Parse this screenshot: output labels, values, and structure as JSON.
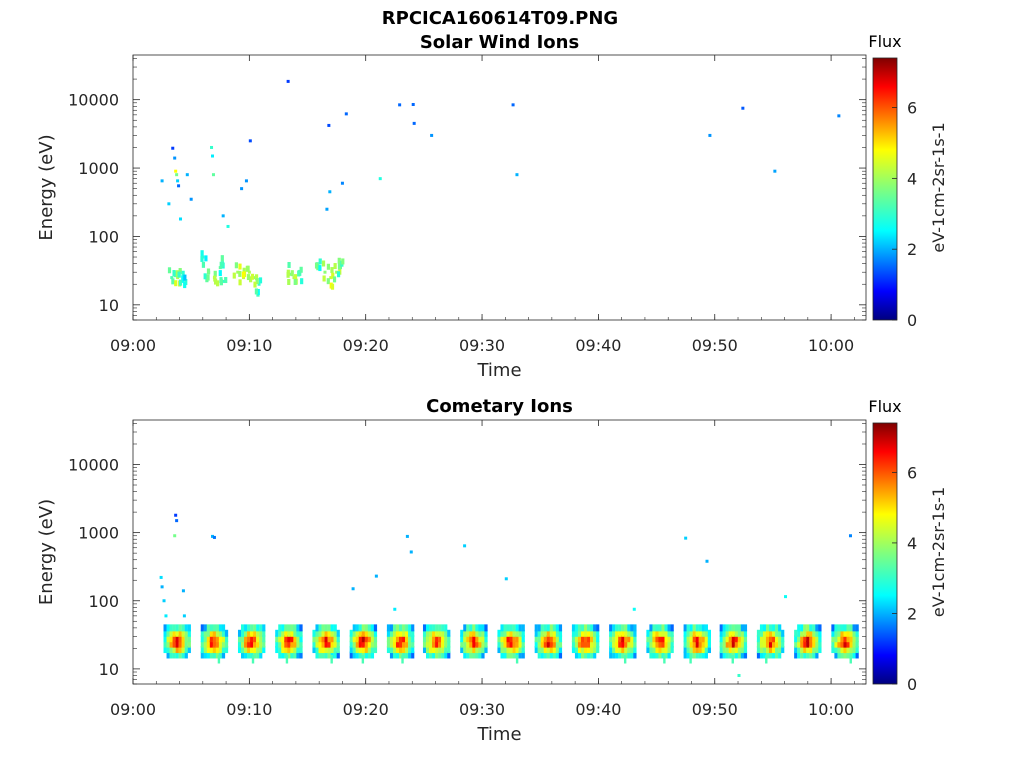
{
  "figure_title": "RPCICA160614T09.PNG",
  "chart_data": [
    {
      "type": "heatmap",
      "title": "Solar Wind Ions",
      "xlabel": "Time",
      "ylabel": "Energy (eV)",
      "x_ticks": [
        "09:00",
        "09:10",
        "09:20",
        "09:30",
        "09:40",
        "09:50",
        "10:00"
      ],
      "y_ticks": [
        "10",
        "100",
        "1000",
        "10000"
      ],
      "xlim": [
        "09:00",
        "10:03"
      ],
      "ylim": [
        6,
        45000
      ],
      "y_scale": "log",
      "colorbar": {
        "title": "Flux",
        "label": "eV-1cm-2sr-1s-1",
        "ticks": [
          "0",
          "2",
          "4",
          "6"
        ],
        "range": [
          0,
          7.4
        ],
        "colormap": "jet"
      },
      "points": [
        [
          "09:02:30",
          650,
          2.0
        ],
        [
          "09:03:05",
          300,
          2.2
        ],
        [
          "09:03:25",
          1950,
          1.2
        ],
        [
          "09:03:35",
          1400,
          1.8
        ],
        [
          "09:03:40",
          900,
          4.8
        ],
        [
          "09:03:45",
          800,
          3.6
        ],
        [
          "09:03:50",
          650,
          2.2
        ],
        [
          "09:03:55",
          550,
          1.5
        ],
        [
          "09:04:05",
          180,
          2.3
        ],
        [
          "09:04:40",
          800,
          2.0
        ],
        [
          "09:05:00",
          350,
          1.8
        ],
        [
          "09:06:45",
          2000,
          3.0
        ],
        [
          "09:06:50",
          1500,
          2.4
        ],
        [
          "09:06:55",
          800,
          3.4
        ],
        [
          "09:07:45",
          200,
          2.0
        ],
        [
          "09:08:10",
          140,
          2.8
        ],
        [
          "09:09:20",
          500,
          1.8
        ],
        [
          "09:09:45",
          650,
          1.8
        ],
        [
          "09:10:05",
          2500,
          1.3
        ],
        [
          "09:13:20",
          18500,
          1.2
        ],
        [
          "09:16:50",
          4200,
          1.3
        ],
        [
          "09:16:40",
          250,
          1.9
        ],
        [
          "09:16:55",
          450,
          2.0
        ],
        [
          "09:18:00",
          600,
          1.7
        ],
        [
          "09:18:20",
          6200,
          1.5
        ],
        [
          "09:21:15",
          700,
          2.8
        ],
        [
          "09:22:55",
          8400,
          1.5
        ],
        [
          "09:24:05",
          8500,
          1.5
        ],
        [
          "09:24:10",
          4500,
          1.5
        ],
        [
          "09:25:40",
          3000,
          1.8
        ],
        [
          "09:32:40",
          8400,
          1.5
        ],
        [
          "09:33:00",
          800,
          2.0
        ],
        [
          "09:49:35",
          3000,
          1.8
        ],
        [
          "09:52:25",
          7500,
          1.4
        ],
        [
          "09:55:10",
          900,
          1.9
        ],
        [
          "10:00:40",
          5800,
          1.7
        ],
        [
          "09:03:20",
          25,
          3.2
        ],
        [
          "09:03:50",
          25,
          4.2
        ],
        [
          "09:04:05",
          30,
          3.0
        ],
        [
          "09:04:15",
          22,
          2.6
        ],
        [
          "09:06:00",
          50,
          3.0
        ],
        [
          "09:06:30",
          30,
          3.2
        ],
        [
          "09:07:00",
          25,
          4.2
        ],
        [
          "09:07:30",
          35,
          3.4
        ],
        [
          "09:07:45",
          22,
          3.0
        ],
        [
          "09:09:00",
          30,
          4.0
        ],
        [
          "09:09:30",
          25,
          4.3
        ],
        [
          "09:10:00",
          30,
          4.1
        ],
        [
          "09:10:30",
          25,
          3.8
        ],
        [
          "09:10:50",
          20,
          3.0
        ],
        [
          "09:13:30",
          28,
          3.6
        ],
        [
          "09:13:50",
          25,
          4.1
        ],
        [
          "09:14:20",
          30,
          3.3
        ],
        [
          "09:15:50",
          40,
          3.1
        ],
        [
          "09:16:30",
          30,
          3.8
        ],
        [
          "09:17:00",
          25,
          4.3
        ],
        [
          "09:17:30",
          30,
          3.9
        ],
        [
          "09:17:50",
          35,
          3.4
        ]
      ]
    },
    {
      "type": "heatmap",
      "title": "Cometary Ions",
      "xlabel": "Time",
      "ylabel": "Energy (eV)",
      "x_ticks": [
        "09:00",
        "09:10",
        "09:20",
        "09:30",
        "09:40",
        "09:50",
        "10:00"
      ],
      "y_ticks": [
        "10",
        "100",
        "1000",
        "10000"
      ],
      "xlim": [
        "09:00",
        "10:03"
      ],
      "ylim": [
        6,
        45000
      ],
      "y_scale": "log",
      "colorbar": {
        "title": "Flux",
        "label": "eV-1cm-2sr-1s-1",
        "ticks": [
          "0",
          "2",
          "4",
          "6"
        ],
        "range": [
          0,
          7.4
        ],
        "colormap": "jet"
      },
      "bursts_minutes": [
        3.8,
        7.0,
        10.2,
        13.4,
        16.6,
        19.8,
        23.0,
        26.1,
        29.3,
        32.5,
        35.7,
        38.9,
        42.1,
        45.3,
        48.5,
        51.6,
        54.8,
        58.0,
        61.2
      ],
      "burst_energy_eV": [
        16,
        40
      ],
      "points": [
        [
          "09:02:25",
          220,
          2.3
        ],
        [
          "09:02:30",
          160,
          2.0
        ],
        [
          "09:02:40",
          100,
          2.2
        ],
        [
          "09:02:50",
          60,
          2.4
        ],
        [
          "09:03:05",
          40,
          2.6
        ],
        [
          "09:03:40",
          1800,
          1.2
        ],
        [
          "09:03:45",
          1500,
          1.5
        ],
        [
          "09:03:35",
          900,
          3.6
        ],
        [
          "09:04:20",
          140,
          2.0
        ],
        [
          "09:04:25",
          60,
          2.2
        ],
        [
          "09:06:50",
          880,
          2.0
        ],
        [
          "09:07:00",
          850,
          1.6
        ],
        [
          "09:18:55",
          150,
          2.0
        ],
        [
          "09:20:55",
          230,
          2.0
        ],
        [
          "09:22:30",
          75,
          2.4
        ],
        [
          "09:23:35",
          880,
          2.0
        ],
        [
          "09:23:55",
          520,
          2.0
        ],
        [
          "09:28:30",
          640,
          2.2
        ],
        [
          "09:32:05",
          210,
          2.2
        ],
        [
          "09:43:05",
          75,
          2.6
        ],
        [
          "09:47:30",
          830,
          2.2
        ],
        [
          "09:49:20",
          380,
          2.0
        ],
        [
          "09:56:05",
          115,
          2.6
        ],
        [
          "10:01:40",
          900,
          1.7
        ],
        [
          "09:52:05",
          8,
          3.0
        ]
      ]
    }
  ]
}
